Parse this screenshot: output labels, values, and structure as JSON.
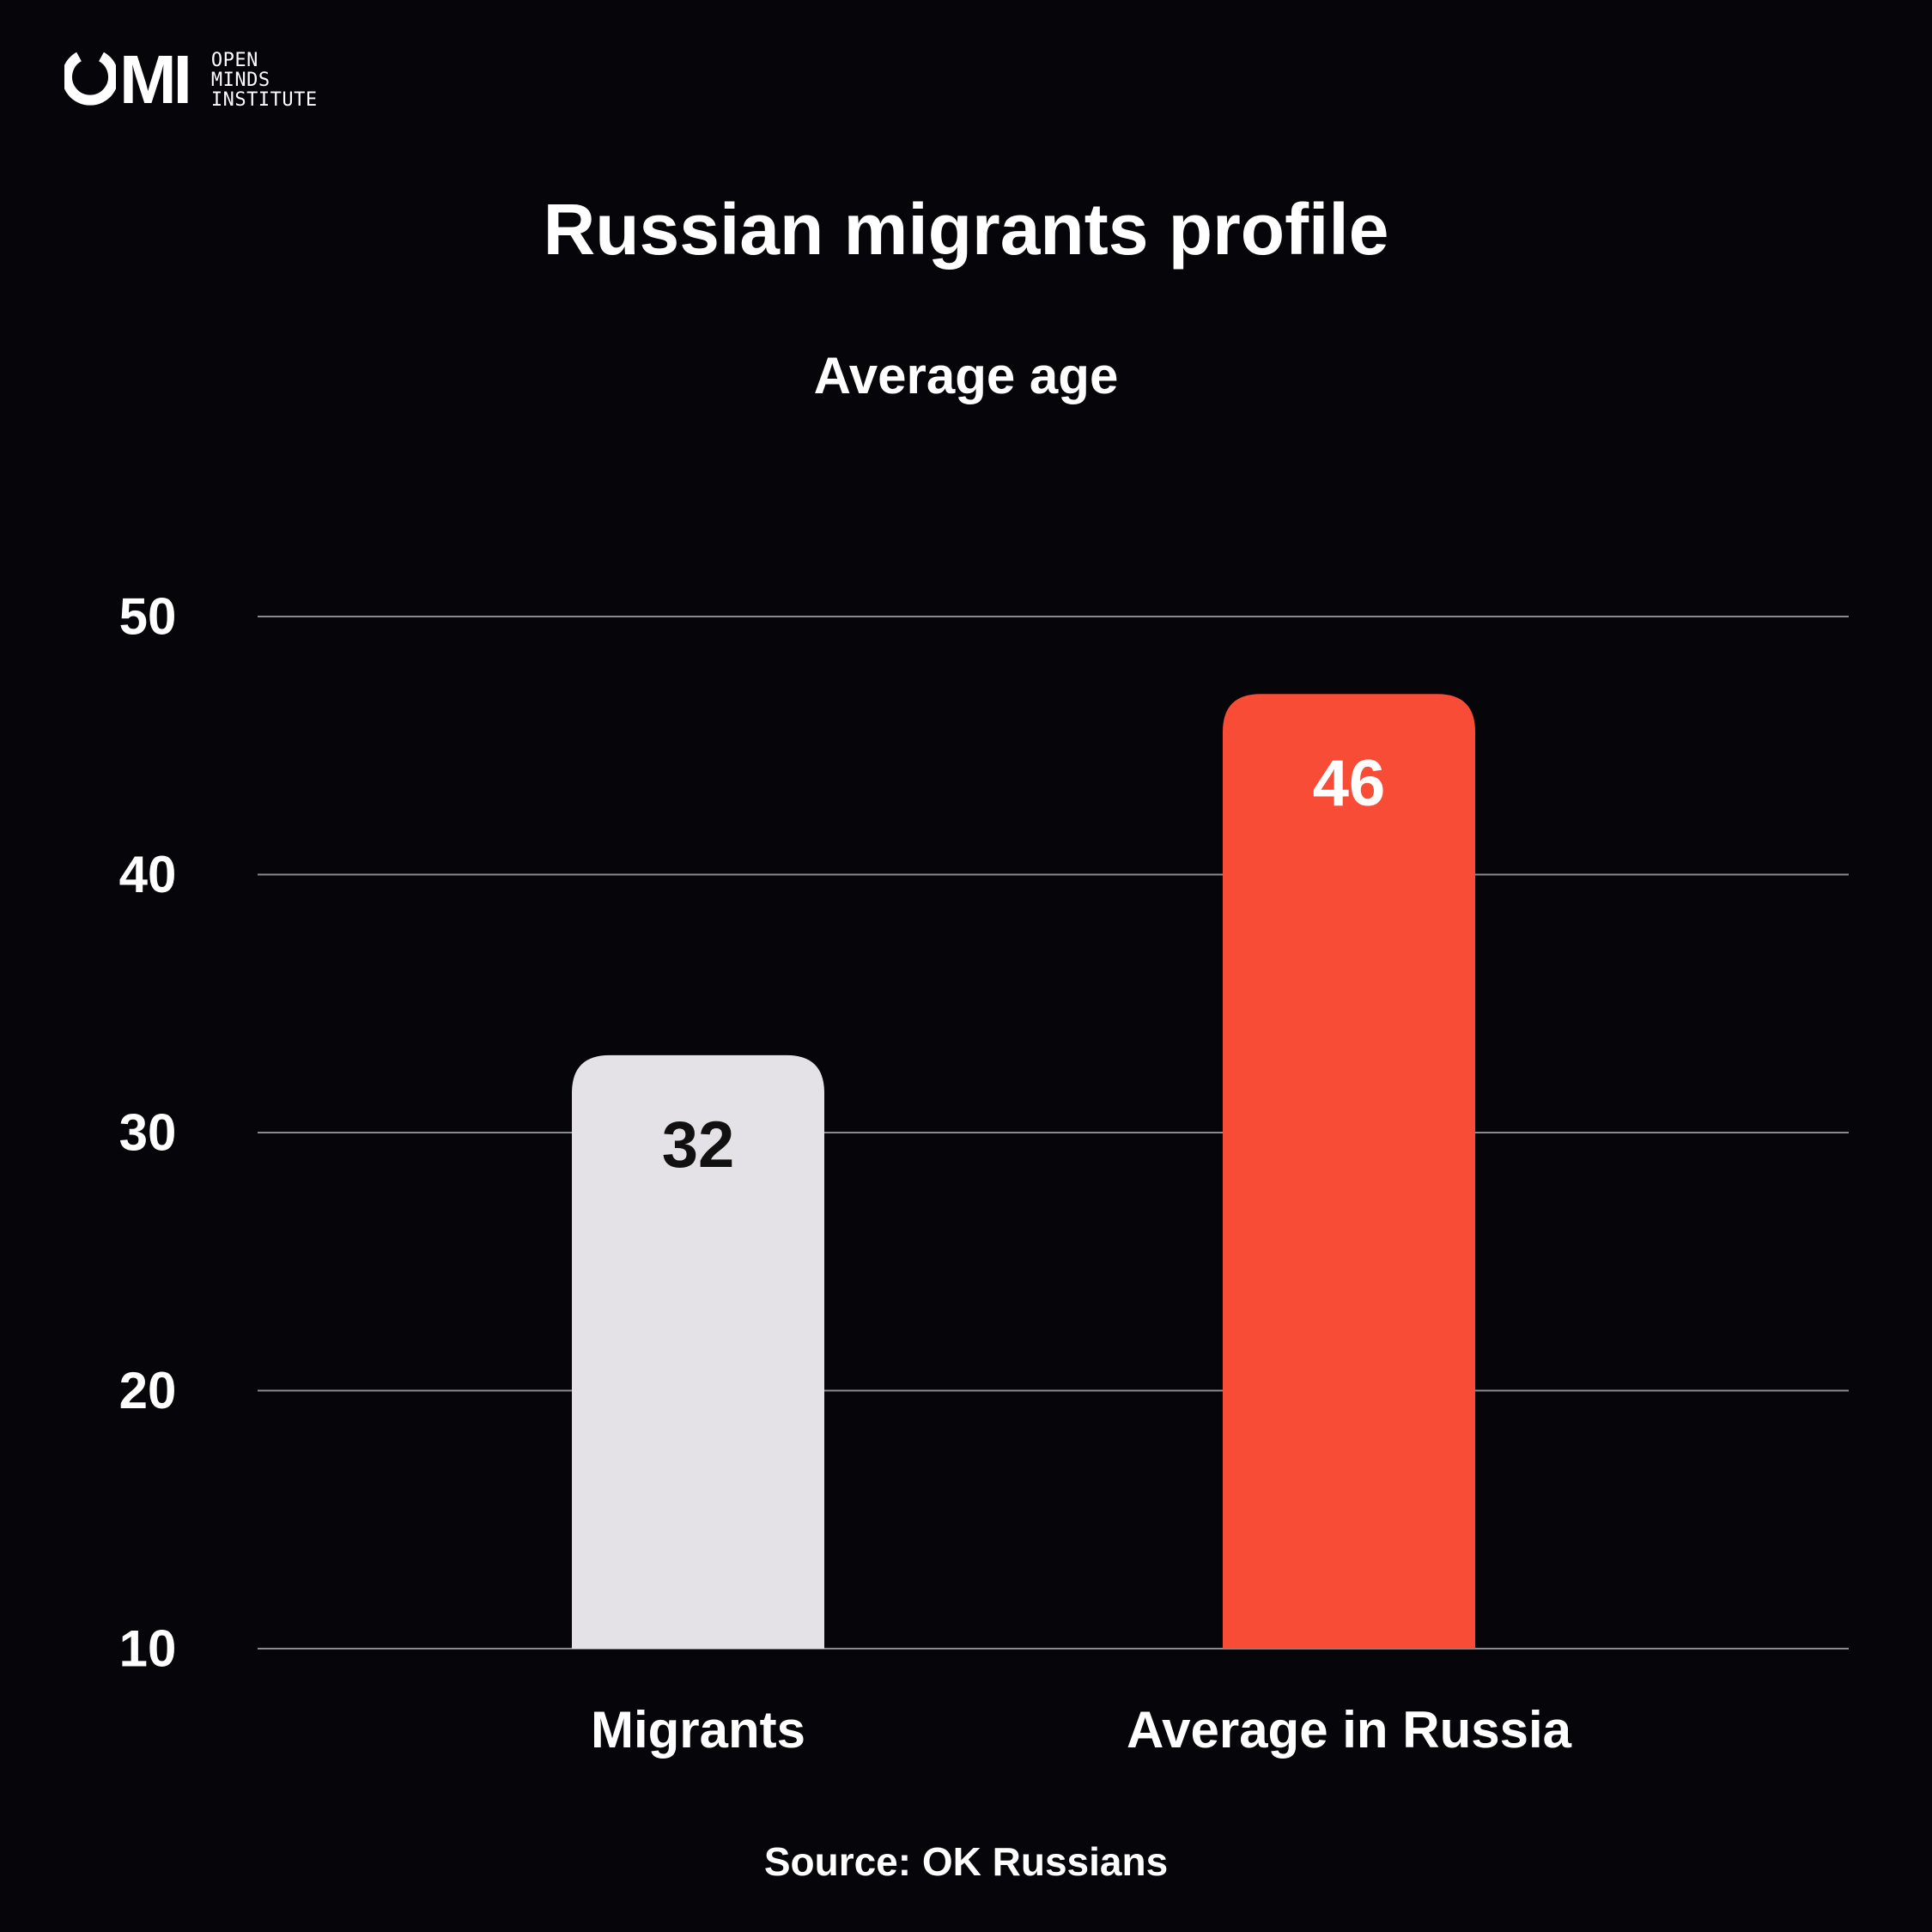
{
  "logo": {
    "mark": "OMI",
    "words": [
      "OPEN",
      "MINDS",
      "INSTITUTE"
    ]
  },
  "title": "Russian migrants profile",
  "subtitle": "Average age",
  "source": "Source: OK Russians",
  "colors": {
    "background": "#05050a",
    "text": "#ffffff",
    "grid": "#8a8a92",
    "migrants_bar": "#e4e2e6",
    "russia_bar": "#f94c37",
    "migrants_label": "#111111",
    "russia_label": "#ffffff"
  },
  "chart_data": {
    "type": "bar",
    "title": "Russian migrants profile",
    "subtitle": "Average age",
    "categories": [
      "Migrants",
      "Average in Russia"
    ],
    "values": [
      32,
      46
    ],
    "value_labels": [
      "32",
      "46"
    ],
    "ylim": [
      10,
      50
    ],
    "yticks": [
      "10",
      "20",
      "30",
      "40",
      "50"
    ],
    "grid": true,
    "legend": "none",
    "xlabel": "",
    "ylabel": ""
  }
}
